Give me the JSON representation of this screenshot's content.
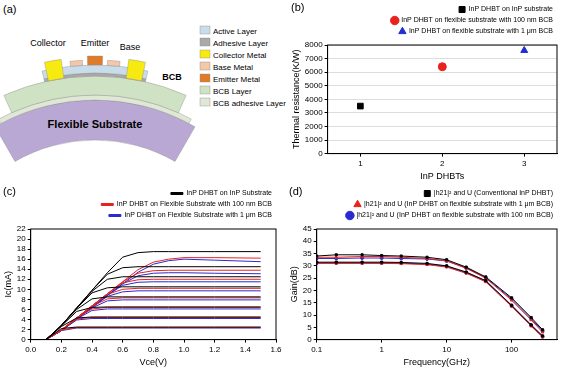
{
  "diagram": {
    "title": "(a)",
    "labels": [
      "Collector",
      "Emitter",
      "Base"
    ],
    "bcb_label": "BCB",
    "substrate_label": "Flexible Substrate",
    "legend": [
      {
        "label": "Active Layer",
        "color": "#c8dcea"
      },
      {
        "label": "Adhesive Layer",
        "color": "#a9a9a9"
      },
      {
        "label": "Collector Metal",
        "color": "#f7ea10"
      },
      {
        "label": "Base Metal",
        "color": "#f3c7a7"
      },
      {
        "label": "Emitter Metal",
        "color": "#e07b2a"
      },
      {
        "label": "BCB Layer",
        "color": "#cfe2c3"
      },
      {
        "label": "BCB adhesive Layer",
        "color": "#dfe8d5"
      }
    ]
  },
  "chart_data": [
    {
      "type": "scatter",
      "title": "(b)",
      "x_label": "InP DHBTs",
      "y_label": "Thermal resistance(K/W)",
      "series": [
        {
          "name": "InP DHBT on InP substrate",
          "color": "#000000",
          "marker": "square",
          "x": [
            1
          ],
          "values": [
            3500
          ]
        },
        {
          "name": "InP DHBT on flexible substrate with 100 nm BCB",
          "color": "#e8221c",
          "marker": "circle",
          "x": [
            2
          ],
          "values": [
            6400
          ]
        },
        {
          "name": "InP DHBT on flexible substrate with 1 μm BCB",
          "color": "#1f2fd1",
          "marker": "triangle",
          "x": [
            3
          ],
          "values": [
            7600
          ]
        }
      ],
      "xlim": [
        0.6,
        3.4
      ],
      "xticks": [
        1,
        2,
        3
      ],
      "ylim": [
        0,
        8000
      ],
      "yticks": [
        0,
        1000,
        2000,
        3000,
        4000,
        5000,
        6000,
        7000,
        8000
      ],
      "grid": "y",
      "legend": "top"
    },
    {
      "type": "line",
      "title": "(c)",
      "x_label": "Vce(V)",
      "y_label": "Ic(mA)",
      "x": [
        0,
        0.1,
        0.2,
        0.3,
        0.4,
        0.5,
        0.6,
        0.7,
        0.8,
        0.9,
        1.0,
        1.2,
        1.5
      ],
      "series": [
        {
          "name": "InP DHBT on InP Substrate",
          "color": "#000000",
          "values": [
            [
              0,
              0,
              2.2,
              2.5,
              2.5,
              2.5,
              2.5,
              2.5,
              2.5,
              2.5,
              2.5,
              2.5,
              2.5
            ],
            [
              0,
              0,
              2.6,
              4.3,
              4.5,
              4.5,
              4.5,
              4.5,
              4.5,
              4.5,
              4.5,
              4.5,
              4.5
            ],
            [
              0,
              0,
              2.7,
              5.6,
              6.4,
              6.5,
              6.5,
              6.5,
              6.5,
              6.5,
              6.5,
              6.5,
              6.5
            ],
            [
              0,
              0,
              2.8,
              6.0,
              8.1,
              8.5,
              8.5,
              8.5,
              8.5,
              8.5,
              8.5,
              8.5,
              8.5
            ],
            [
              0,
              0,
              2.8,
              6.2,
              9.3,
              10.3,
              10.5,
              10.5,
              10.5,
              10.5,
              10.5,
              10.5,
              10.5
            ],
            [
              0,
              0,
              2.8,
              6.3,
              9.6,
              12.0,
              12.5,
              12.5,
              12.5,
              12.5,
              12.5,
              12.5,
              12.5
            ],
            [
              0,
              0,
              2.8,
              6.3,
              9.8,
              13.0,
              14.3,
              14.5,
              14.5,
              14.5,
              14.5,
              14.5,
              14.5
            ],
            [
              0,
              0,
              2.8,
              6.3,
              9.8,
              13.3,
              16.4,
              17.3,
              17.5,
              17.5,
              17.5,
              17.5,
              17.5
            ]
          ]
        },
        {
          "name": "InP DHBT on Flexible Substrate with 100 nm BCB",
          "color": "#e8221c",
          "values": [
            [
              0,
              0,
              1.9,
              2.4,
              2.4,
              2.4,
              2.4,
              2.4,
              2.4,
              2.4,
              2.4,
              2.4,
              2.4
            ],
            [
              0,
              0,
              1.9,
              4.1,
              4.4,
              4.4,
              4.4,
              4.4,
              4.4,
              4.4,
              4.4,
              4.4,
              4.4
            ],
            [
              0,
              0,
              1.9,
              4.3,
              6.1,
              6.4,
              6.4,
              6.4,
              6.4,
              6.4,
              6.4,
              6.4,
              6.4
            ],
            [
              0,
              0,
              1.9,
              4.3,
              6.6,
              8.1,
              8.3,
              8.3,
              8.3,
              8.3,
              8.3,
              8.3,
              8.3
            ],
            [
              0,
              0,
              1.9,
              4.3,
              6.7,
              9.0,
              10.0,
              10.2,
              10.2,
              10.2,
              10.2,
              10.2,
              10.2
            ],
            [
              0,
              0,
              1.9,
              4.3,
              6.7,
              9.1,
              11.3,
              11.9,
              12.0,
              12.0,
              12.0,
              12.0,
              12.0
            ],
            [
              0,
              0,
              1.9,
              4.3,
              6.7,
              9.1,
              11.5,
              13.2,
              13.7,
              13.8,
              13.8,
              13.8,
              13.8
            ],
            [
              0,
              0,
              1.9,
              4.3,
              6.7,
              9.1,
              11.5,
              13.9,
              15.4,
              16.0,
              16.3,
              16.3,
              16.2
            ]
          ]
        },
        {
          "name": "InP DHBT on Flexible Substrate with 1 μm BCB",
          "color": "#2a2ad0",
          "values": [
            [
              0,
              0,
              1.8,
              2.3,
              2.3,
              2.3,
              2.3,
              2.3,
              2.3,
              2.3,
              2.3,
              2.3,
              2.3
            ],
            [
              0,
              0,
              1.8,
              3.9,
              4.2,
              4.2,
              4.2,
              4.2,
              4.2,
              4.2,
              4.2,
              4.2,
              4.2
            ],
            [
              0,
              0,
              1.8,
              4.1,
              5.8,
              6.1,
              6.1,
              6.1,
              6.1,
              6.1,
              6.1,
              6.1,
              6.1
            ],
            [
              0,
              0,
              1.8,
              4.1,
              6.3,
              7.7,
              7.9,
              7.9,
              7.9,
              7.9,
              7.9,
              7.9,
              7.9
            ],
            [
              0,
              0,
              1.8,
              4.1,
              6.4,
              8.6,
              9.5,
              9.7,
              9.7,
              9.7,
              9.7,
              9.7,
              9.7
            ],
            [
              0,
              0,
              1.8,
              4.1,
              6.4,
              8.8,
              10.8,
              11.4,
              11.5,
              11.5,
              11.5,
              11.5,
              11.5
            ],
            [
              0,
              0,
              1.8,
              4.1,
              6.4,
              8.8,
              11.1,
              12.7,
              13.2,
              13.3,
              13.3,
              13.2,
              13.1
            ],
            [
              0,
              0,
              1.8,
              4.1,
              6.4,
              8.8,
              11.1,
              13.4,
              15.0,
              15.7,
              16.0,
              15.8,
              15.5
            ]
          ]
        }
      ],
      "xlim": [
        0,
        1.6
      ],
      "xticks": [
        {
          "value": 0,
          "label": "0.0"
        },
        0.2,
        0.4,
        0.6,
        0.8,
        {
          "value": 1.0,
          "label": "1.0"
        },
        1.2,
        1.4,
        1.6
      ],
      "ylim": [
        0,
        22
      ],
      "yticks": [
        0,
        2,
        4,
        6,
        8,
        10,
        12,
        14,
        16,
        18,
        20,
        22
      ],
      "grid": false,
      "legend": "top"
    },
    {
      "type": "line",
      "title": "(d)",
      "x_label": "Frequency(GHz)",
      "y_label": "Gain(dB)",
      "log": "x",
      "x": [
        0.1,
        0.2,
        0.5,
        1,
        2,
        5,
        10,
        20,
        40,
        100,
        200,
        300
      ],
      "series": [
        {
          "name": "|h21|² and U (Conventional InP DHBT)",
          "color": "#000000",
          "marker": "square",
          "values": [
            [
              31.5,
              31.5,
              31.5,
              31.5,
              31.4,
              31.0,
              30.0,
              27.5,
              24.0,
              14.0,
              6.0,
              1.5
            ],
            [
              34.0,
              34.5,
              34.5,
              34.2,
              34.0,
              33.5,
              32.5,
              29.5,
              25.5,
              17.0,
              9.0,
              4.0
            ]
          ]
        },
        {
          "name": "|h21|² and U (InP DHBT on flexible substrate with 1 μm BCB)",
          "color": "#e8221c",
          "marker": "triangle",
          "values": [
            [
              31.0,
              31.0,
              31.0,
              31.0,
              30.9,
              30.5,
              29.5,
              27.0,
              23.5,
              13.5,
              5.5,
              1.0
            ],
            [
              33.5,
              33.5,
              33.8,
              33.8,
              33.5,
              33.0,
              32.0,
              29.0,
              25.0,
              16.0,
              8.0,
              3.0
            ]
          ]
        },
        {
          "name": "|h21|² and U (InP DHBT on flexible substrate with 100 nm BCB)",
          "color": "#2a2ad0",
          "marker": "circle",
          "values": [
            [
              31.2,
              31.2,
              31.2,
              31.2,
              31.1,
              30.7,
              29.8,
              27.2,
              23.8,
              13.8,
              5.8,
              1.2
            ],
            [
              33.0,
              33.0,
              33.2,
              33.2,
              33.0,
              32.8,
              32.0,
              29.2,
              25.2,
              16.5,
              8.5,
              3.5
            ]
          ]
        }
      ],
      "xlim": [
        0.1,
        500
      ],
      "xticks": [
        0.1,
        1,
        10,
        100
      ],
      "ylim": [
        0,
        45
      ],
      "yticks": [
        0,
        5,
        10,
        15,
        20,
        25,
        30,
        35,
        40,
        45
      ],
      "grid": false,
      "legend": "top"
    }
  ]
}
